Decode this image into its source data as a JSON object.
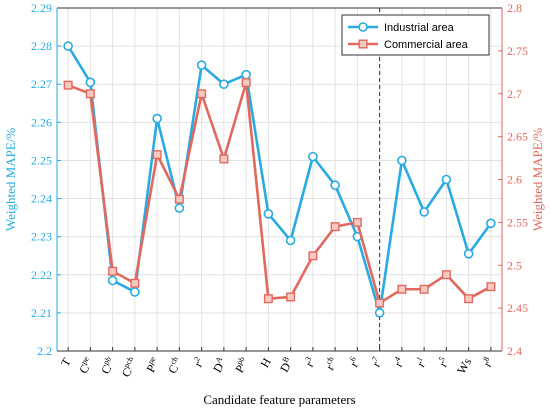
{
  "chart_data": {
    "type": "line",
    "xlabel": "Candidate feature parameters",
    "ylabel_left": "Weighted MAPE/%",
    "ylabel_right": "Weighted MAPE/%",
    "categories": [
      {
        "base": "T",
        "sup": ""
      },
      {
        "base": "C",
        "sup": "pe"
      },
      {
        "base": "C",
        "sup": "pb"
      },
      {
        "base": "C",
        "sup": "pch"
      },
      {
        "base": "P",
        "sup": "pe"
      },
      {
        "base": "C",
        "sup": "ch"
      },
      {
        "base": "r",
        "sup": "2"
      },
      {
        "base": "D",
        "sup": "A"
      },
      {
        "base": "P",
        "sup": "pb"
      },
      {
        "base": "H",
        "sup": ""
      },
      {
        "base": "D",
        "sup": "B"
      },
      {
        "base": "r",
        "sup": "3"
      },
      {
        "base": "r",
        "sup": "ch"
      },
      {
        "base": "r",
        "sup": "6"
      },
      {
        "base": "r",
        "sup": "7"
      },
      {
        "base": "r",
        "sup": "4"
      },
      {
        "base": "r",
        "sup": "1"
      },
      {
        "base": "r",
        "sup": "5"
      },
      {
        "base": "Ws",
        "sup": ""
      },
      {
        "base": "r",
        "sup": "8"
      }
    ],
    "ylim_left": [
      2.2,
      2.29
    ],
    "yticks_left": [
      "2.2",
      "2.21",
      "2.22",
      "2.23",
      "2.24",
      "2.25",
      "2.26",
      "2.27",
      "2.28",
      "2.29"
    ],
    "ylim_right": [
      2.4,
      2.8
    ],
    "yticks_right": [
      "2.4",
      "2.45",
      "2.5",
      "2.55",
      "2.6",
      "2.65",
      "2.7",
      "2.75",
      "2.8"
    ],
    "grid": true,
    "legend_position": "top-right",
    "vline_at_category_index": 14,
    "series": [
      {
        "name": "Industrial area",
        "axis": "left",
        "color": "#2aaae2",
        "marker": "circle",
        "values": [
          2.28,
          2.2705,
          2.2185,
          2.2155,
          2.261,
          2.2375,
          2.275,
          2.27,
          2.2725,
          2.236,
          2.229,
          2.251,
          2.2435,
          2.23,
          2.21,
          2.25,
          2.2365,
          2.245,
          2.2255,
          2.2335
        ]
      },
      {
        "name": "Commercial area",
        "axis": "right",
        "color": "#e06a5f",
        "marker": "square",
        "values": [
          2.71,
          2.7,
          2.493,
          2.479,
          2.629,
          2.577,
          2.7,
          2.624,
          2.713,
          2.461,
          2.463,
          2.511,
          2.545,
          2.55,
          2.456,
          2.472,
          2.472,
          2.489,
          2.461,
          2.475
        ]
      }
    ]
  }
}
